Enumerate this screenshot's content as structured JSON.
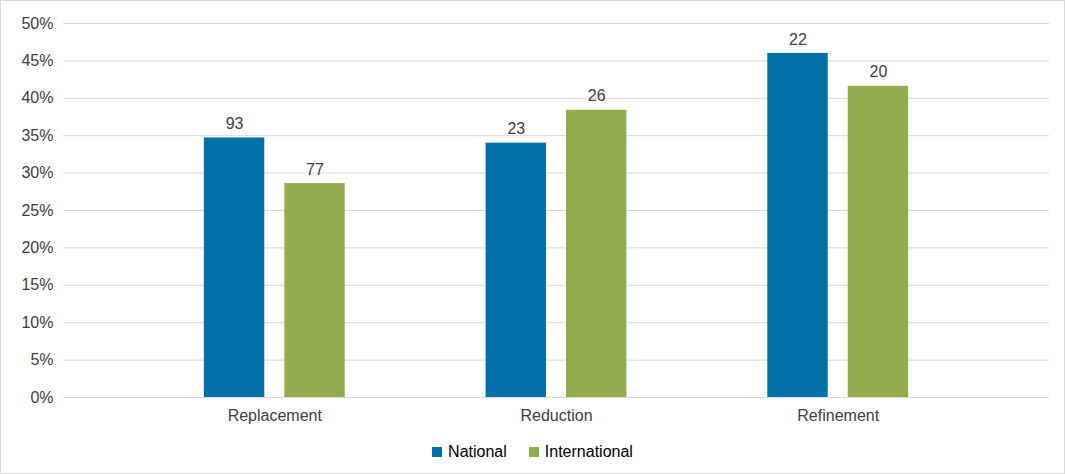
{
  "chart_data": {
    "type": "bar",
    "categories": [
      "Replacement",
      "Reduction",
      "Refinement"
    ],
    "series": [
      {
        "name": "National",
        "color": "#0070a8",
        "values": [
          34.7,
          34.0,
          46.0
        ],
        "counts": [
          93,
          23,
          22
        ]
      },
      {
        "name": "International",
        "color": "#92ad4e",
        "values": [
          28.6,
          38.4,
          41.6
        ],
        "counts": [
          77,
          26,
          20
        ]
      }
    ],
    "ylim": [
      0,
      50
    ],
    "yticks": [
      {
        "value": 0,
        "label": "0%"
      },
      {
        "value": 5,
        "label": "5%"
      },
      {
        "value": 10,
        "label": "10%"
      },
      {
        "value": 15,
        "label": "15%"
      },
      {
        "value": 20,
        "label": "20%"
      },
      {
        "value": 25,
        "label": "25%"
      },
      {
        "value": 30,
        "label": "30%"
      },
      {
        "value": 35,
        "label": "35%"
      },
      {
        "value": 40,
        "label": "40%"
      },
      {
        "value": 45,
        "label": "45%"
      },
      {
        "value": 50,
        "label": "50%"
      }
    ],
    "grid": true,
    "legend": "bottom"
  }
}
